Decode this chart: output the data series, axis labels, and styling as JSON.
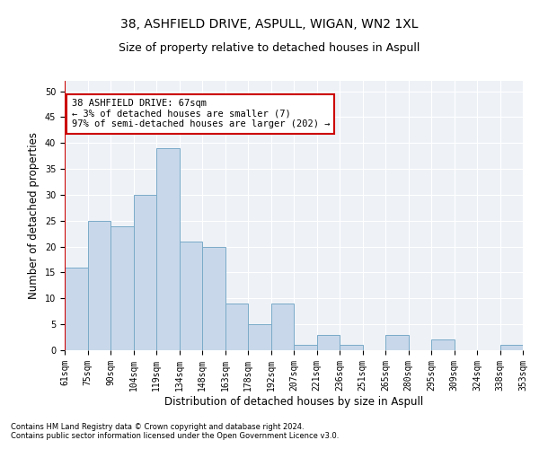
{
  "title": "38, ASHFIELD DRIVE, ASPULL, WIGAN, WN2 1XL",
  "subtitle": "Size of property relative to detached houses in Aspull",
  "xlabel": "Distribution of detached houses by size in Aspull",
  "ylabel": "Number of detached properties",
  "bins": [
    "61sqm",
    "75sqm",
    "90sqm",
    "104sqm",
    "119sqm",
    "134sqm",
    "148sqm",
    "163sqm",
    "178sqm",
    "192sqm",
    "207sqm",
    "221sqm",
    "236sqm",
    "251sqm",
    "265sqm",
    "280sqm",
    "295sqm",
    "309sqm",
    "324sqm",
    "338sqm",
    "353sqm"
  ],
  "values": [
    16,
    25,
    24,
    30,
    39,
    21,
    20,
    9,
    5,
    9,
    1,
    3,
    1,
    0,
    3,
    0,
    2,
    0,
    0,
    1
  ],
  "bar_color": "#c8d8ea",
  "bar_edge_color": "#7aaac8",
  "highlight_color": "#cc0000",
  "annotation_text": "38 ASHFIELD DRIVE: 67sqm\n← 3% of detached houses are smaller (7)\n97% of semi-detached houses are larger (202) →",
  "annotation_box_color": "#cc0000",
  "ylim": [
    0,
    52
  ],
  "yticks": [
    0,
    5,
    10,
    15,
    20,
    25,
    30,
    35,
    40,
    45,
    50
  ],
  "footer1": "Contains HM Land Registry data © Crown copyright and database right 2024.",
  "footer2": "Contains public sector information licensed under the Open Government Licence v3.0.",
  "bg_color": "#eef2f7",
  "grid_color": "#ffffff",
  "title_fontsize": 10,
  "subtitle_fontsize": 9,
  "axis_label_fontsize": 8.5,
  "tick_fontsize": 7,
  "annotation_fontsize": 7.5,
  "footer_fontsize": 6
}
